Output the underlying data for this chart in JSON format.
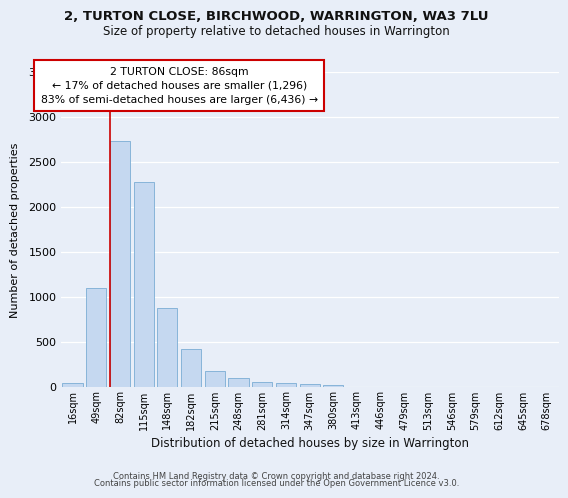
{
  "title_line1": "2, TURTON CLOSE, BIRCHWOOD, WARRINGTON, WA3 7LU",
  "title_line2": "Size of property relative to detached houses in Warrington",
  "xlabel": "Distribution of detached houses by size in Warrington",
  "ylabel": "Number of detached properties",
  "footer_line1": "Contains HM Land Registry data © Crown copyright and database right 2024.",
  "footer_line2": "Contains public sector information licensed under the Open Government Licence v3.0.",
  "annotation_title": "2 TURTON CLOSE: 86sqm",
  "annotation_line1": "← 17% of detached houses are smaller (1,296)",
  "annotation_line2": "83% of semi-detached houses are larger (6,436) →",
  "categories": [
    "16sqm",
    "49sqm",
    "82sqm",
    "115sqm",
    "148sqm",
    "182sqm",
    "215sqm",
    "248sqm",
    "281sqm",
    "314sqm",
    "347sqm",
    "380sqm",
    "413sqm",
    "446sqm",
    "479sqm",
    "513sqm",
    "546sqm",
    "579sqm",
    "612sqm",
    "645sqm",
    "678sqm"
  ],
  "values": [
    50,
    1100,
    2730,
    2280,
    880,
    420,
    175,
    100,
    60,
    50,
    30,
    20,
    0,
    0,
    0,
    0,
    0,
    0,
    0,
    0,
    0
  ],
  "bar_color": "#c5d8f0",
  "bar_edge_color": "#7aadd4",
  "marker_color": "#cc0000",
  "bg_color": "#e8eef8",
  "grid_color": "#ffffff",
  "ylim": [
    0,
    3500
  ],
  "yticks": [
    0,
    500,
    1000,
    1500,
    2000,
    2500,
    3000,
    3500
  ],
  "marker_bin_index": 2
}
